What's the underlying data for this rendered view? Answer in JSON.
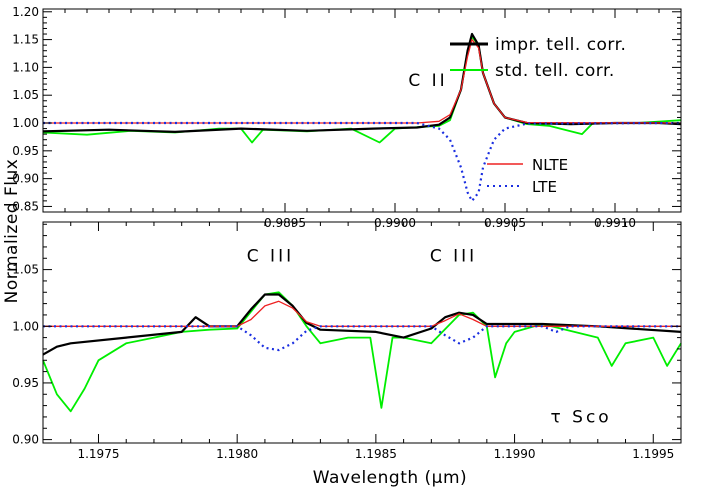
{
  "figure": {
    "ylabel": "Normalized Flux",
    "xlabel": "Wavelength (μm)"
  },
  "colors": {
    "black_series": "#000000",
    "green_series": "#00ee00",
    "nlte": "#ee2222",
    "lte": "#1a2ee0"
  },
  "chart_data": [
    {
      "type": "line",
      "panel": "top",
      "xlim": [
        0.9884,
        0.9913
      ],
      "ylim": [
        0.84,
        1.205
      ],
      "x_ticks": [
        "0.9895",
        "0.9900",
        "0.9905",
        "0.9910"
      ],
      "y_ticks": [
        "0.85",
        "0.90",
        "0.95",
        "1.00",
        "1.05",
        "1.10",
        "1.15",
        "1.20"
      ],
      "annotations": [
        {
          "text": "C II",
          "x": 0.99015,
          "y": 1.067
        }
      ],
      "legend_position": "top-right",
      "legend2_position": "lower-right",
      "series": [
        {
          "name": "impr. tell. corr.",
          "color": "#000000",
          "x": [
            0.9884,
            0.9887,
            0.989,
            0.9893,
            0.9896,
            0.9899,
            0.9901,
            0.9902,
            0.99025,
            0.9903,
            0.99033,
            0.99035,
            0.99038,
            0.9904,
            0.99045,
            0.9905,
            0.9906,
            0.9908,
            0.991,
            0.9912,
            0.9913
          ],
          "y": [
            0.985,
            0.988,
            0.984,
            0.99,
            0.986,
            0.99,
            0.992,
            0.997,
            1.01,
            1.06,
            1.13,
            1.16,
            1.14,
            1.09,
            1.035,
            1.01,
            1.0,
            0.998,
            1.0,
            1.0,
            0.998
          ]
        },
        {
          "name": "std. tell. corr.",
          "color": "#00ee00",
          "x": [
            0.9884,
            0.9886,
            0.9888,
            0.989,
            0.9892,
            0.9893,
            0.98935,
            0.9894,
            0.9896,
            0.9898,
            0.98993,
            0.99,
            0.9902,
            0.99025,
            0.9903,
            0.99033,
            0.99035,
            0.99038,
            0.9904,
            0.99045,
            0.9905,
            0.9906,
            0.9907,
            0.99085,
            0.9909,
            0.9911,
            0.9913
          ],
          "y": [
            0.983,
            0.979,
            0.986,
            0.983,
            0.99,
            0.99,
            0.965,
            0.988,
            0.985,
            0.99,
            0.965,
            0.99,
            0.995,
            1.005,
            1.06,
            1.13,
            1.155,
            1.14,
            1.09,
            1.035,
            1.01,
            0.998,
            0.995,
            0.98,
            1.0,
            1.0,
            1.005
          ]
        },
        {
          "name": "NLTE",
          "color": "#ee2222",
          "x": [
            0.9884,
            0.9901,
            0.9902,
            0.99025,
            0.9903,
            0.99033,
            0.99035,
            0.99038,
            0.9904,
            0.99045,
            0.9905,
            0.9906,
            0.9913
          ],
          "y": [
            1.0,
            1.0,
            1.003,
            1.015,
            1.06,
            1.12,
            1.15,
            1.135,
            1.09,
            1.035,
            1.01,
            1.001,
            1.0
          ]
        },
        {
          "name": "LTE",
          "color": "#1a2ee0",
          "x": [
            0.9884,
            0.9901,
            0.9902,
            0.99025,
            0.9903,
            0.99033,
            0.99035,
            0.99038,
            0.9904,
            0.99045,
            0.9905,
            0.9906,
            0.9913
          ],
          "y": [
            1.0,
            1.0,
            0.99,
            0.97,
            0.92,
            0.875,
            0.86,
            0.875,
            0.92,
            0.97,
            0.99,
            0.999,
            1.0
          ]
        }
      ]
    },
    {
      "type": "line",
      "panel": "bottom",
      "xlim": [
        1.1973,
        1.1996
      ],
      "ylim": [
        0.897,
        1.092
      ],
      "x_ticks": [
        "1.1975",
        "1.1980",
        "1.1985",
        "1.1990",
        "1.1995"
      ],
      "y_ticks": [
        "0.90",
        "0.95",
        "1.00",
        "1.05"
      ],
      "annotations": [
        {
          "text": "C III",
          "x": 1.19812,
          "y": 1.057
        },
        {
          "text": "C III",
          "x": 1.19878,
          "y": 1.057
        },
        {
          "text": "τ Sco",
          "x": 1.19924,
          "y": 0.915
        }
      ],
      "series": [
        {
          "name": "impr. tell. corr.",
          "color": "#000000",
          "x": [
            1.1973,
            1.19735,
            1.1974,
            1.1976,
            1.1978,
            1.19785,
            1.1979,
            1.198,
            1.19805,
            1.1981,
            1.19815,
            1.1982,
            1.19825,
            1.1983,
            1.1985,
            1.1986,
            1.1987,
            1.19875,
            1.1988,
            1.19885,
            1.1989,
            1.1991,
            1.1993,
            1.1996
          ],
          "y": [
            0.975,
            0.982,
            0.985,
            0.99,
            0.995,
            1.008,
            1.0,
            1.0,
            1.015,
            1.028,
            1.028,
            1.018,
            1.003,
            0.997,
            0.995,
            0.99,
            0.998,
            1.008,
            1.012,
            1.01,
            1.002,
            1.002,
            1.0,
            0.995
          ]
        },
        {
          "name": "std. tell. corr.",
          "color": "#00ee00",
          "x": [
            1.1973,
            1.19735,
            1.1974,
            1.19745,
            1.1975,
            1.1976,
            1.1977,
            1.1978,
            1.1979,
            1.198,
            1.1981,
            1.19815,
            1.1982,
            1.19825,
            1.1983,
            1.1984,
            1.19848,
            1.19852,
            1.19856,
            1.1986,
            1.1987,
            1.1988,
            1.19885,
            1.1989,
            1.19893,
            1.19897,
            1.199,
            1.1991,
            1.1993,
            1.19935,
            1.1994,
            1.1995,
            1.19955,
            1.1996
          ],
          "y": [
            0.97,
            0.94,
            0.925,
            0.945,
            0.97,
            0.985,
            0.99,
            0.995,
            0.997,
            0.998,
            1.028,
            1.03,
            1.018,
            1.0,
            0.985,
            0.99,
            0.99,
            0.928,
            0.99,
            0.99,
            0.985,
            1.01,
            1.012,
            1.0,
            0.955,
            0.985,
            0.995,
            1.002,
            0.99,
            0.965,
            0.985,
            0.99,
            0.965,
            0.985
          ]
        },
        {
          "name": "NLTE",
          "color": "#ee2222",
          "x": [
            1.1973,
            1.198,
            1.19805,
            1.1981,
            1.19815,
            1.1982,
            1.19825,
            1.1983,
            1.1987,
            1.19875,
            1.1988,
            1.19885,
            1.1989,
            1.1996
          ],
          "y": [
            1.0,
            1.0,
            1.006,
            1.018,
            1.022,
            1.016,
            1.004,
            1.0,
            1.0,
            1.005,
            1.011,
            1.006,
            1.0,
            1.0
          ]
        },
        {
          "name": "LTE",
          "color": "#1a2ee0",
          "x": [
            1.1973,
            1.198,
            1.19805,
            1.1981,
            1.19815,
            1.1982,
            1.19825,
            1.1983,
            1.1987,
            1.19875,
            1.1988,
            1.19885,
            1.1989,
            1.1991,
            1.19915,
            1.1992,
            1.1996
          ],
          "y": [
            1.0,
            1.0,
            0.992,
            0.981,
            0.979,
            0.985,
            0.996,
            1.0,
            1.0,
            0.992,
            0.985,
            0.99,
            1.0,
            1.0,
            0.995,
            1.0,
            1.0
          ]
        }
      ]
    }
  ]
}
